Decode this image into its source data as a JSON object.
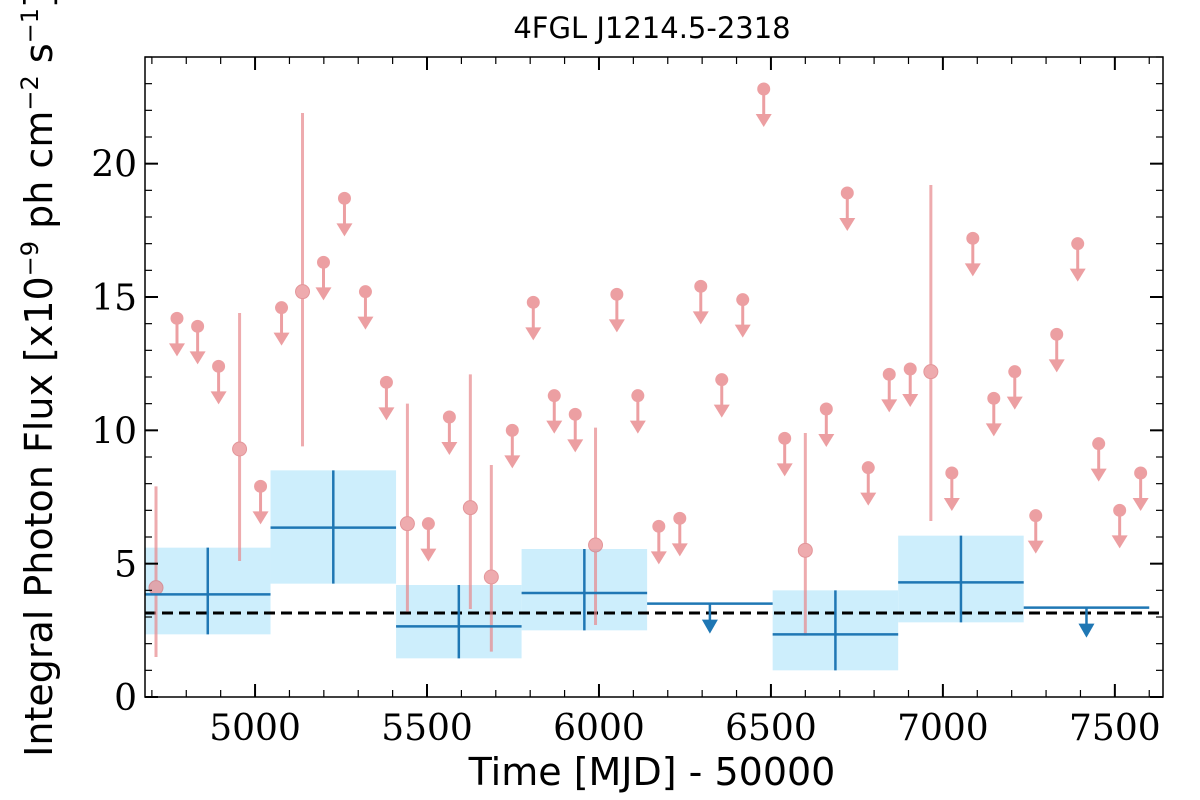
{
  "chart_data": {
    "type": "scatter",
    "title": "4FGL J1214.5-2318",
    "xlabel": "Time [MJD] - 50000",
    "ylabel_text": "Integral Photon Flux [x10",
    "ylabel_exp1": "−9",
    "ylabel_mid": " ph cm",
    "ylabel_exp2": "−2",
    "ylabel_mid2": " s",
    "ylabel_exp3": "−1",
    "ylabel_end": "]",
    "xlim": [
      4680,
      7640
    ],
    "ylim": [
      0,
      24
    ],
    "x_ticks": [
      5000,
      5500,
      6000,
      6500,
      7000,
      7500
    ],
    "y_ticks": [
      0,
      5,
      10,
      15,
      20
    ],
    "x_tick_labels": [
      "5000",
      "5500",
      "6000",
      "6500",
      "7000",
      "7500"
    ],
    "y_tick_labels": [
      "0",
      "5",
      "10",
      "15",
      "20"
    ],
    "baseline": 3.15,
    "colors": {
      "short_bins": "#e8888c",
      "long_bins": "#1f77b4",
      "long_band": "#cdeefc",
      "baseline": "#000000"
    },
    "short_bin_detections": [
      {
        "x": 4712,
        "y": 4.1,
        "lo": 1.5,
        "hi": 7.9
      },
      {
        "x": 4955,
        "y": 9.3,
        "lo": 5.1,
        "hi": 14.4
      },
      {
        "x": 5138,
        "y": 15.2,
        "lo": 9.4,
        "hi": 21.9
      },
      {
        "x": 5443,
        "y": 6.5,
        "lo": 3.2,
        "hi": 11.0
      },
      {
        "x": 5626,
        "y": 7.1,
        "lo": 3.3,
        "hi": 12.1
      },
      {
        "x": 5687,
        "y": 4.5,
        "lo": 1.7,
        "hi": 8.7
      },
      {
        "x": 5990,
        "y": 5.7,
        "lo": 2.7,
        "hi": 10.1
      },
      {
        "x": 6600,
        "y": 5.5,
        "lo": 2.3,
        "hi": 9.9
      },
      {
        "x": 6965,
        "y": 12.2,
        "lo": 6.6,
        "hi": 19.2
      }
    ],
    "short_bin_upper_limits": [
      {
        "x": 4773,
        "y": 14.2
      },
      {
        "x": 4833,
        "y": 13.9
      },
      {
        "x": 4894,
        "y": 12.4
      },
      {
        "x": 5016,
        "y": 7.9
      },
      {
        "x": 5077,
        "y": 14.6
      },
      {
        "x": 5199,
        "y": 16.3
      },
      {
        "x": 5260,
        "y": 18.7
      },
      {
        "x": 5321,
        "y": 15.2
      },
      {
        "x": 5382,
        "y": 11.8
      },
      {
        "x": 5504,
        "y": 6.5
      },
      {
        "x": 5565,
        "y": 10.5
      },
      {
        "x": 5748,
        "y": 10.0
      },
      {
        "x": 5809,
        "y": 14.8
      },
      {
        "x": 5870,
        "y": 11.3
      },
      {
        "x": 5931,
        "y": 10.6
      },
      {
        "x": 6052,
        "y": 15.1
      },
      {
        "x": 6113,
        "y": 11.3
      },
      {
        "x": 6174,
        "y": 6.4
      },
      {
        "x": 6235,
        "y": 6.7
      },
      {
        "x": 6296,
        "y": 15.4
      },
      {
        "x": 6357,
        "y": 11.9
      },
      {
        "x": 6418,
        "y": 14.9
      },
      {
        "x": 6479,
        "y": 22.8
      },
      {
        "x": 6540,
        "y": 9.7
      },
      {
        "x": 6661,
        "y": 10.8
      },
      {
        "x": 6722,
        "y": 18.9
      },
      {
        "x": 6783,
        "y": 8.6
      },
      {
        "x": 6844,
        "y": 12.1
      },
      {
        "x": 6905,
        "y": 12.3
      },
      {
        "x": 7026,
        "y": 8.4
      },
      {
        "x": 7087,
        "y": 17.2
      },
      {
        "x": 7148,
        "y": 11.2
      },
      {
        "x": 7209,
        "y": 12.2
      },
      {
        "x": 7270,
        "y": 6.8
      },
      {
        "x": 7331,
        "y": 13.6
      },
      {
        "x": 7392,
        "y": 17.0
      },
      {
        "x": 7453,
        "y": 9.5
      },
      {
        "x": 7514,
        "y": 7.0
      },
      {
        "x": 7575,
        "y": 8.4
      }
    ],
    "long_bin_detections": [
      {
        "x0": 4680,
        "x1": 5045,
        "y": 3.85,
        "lo": 2.35,
        "hi": 5.6
      },
      {
        "x0": 5045,
        "x1": 5410,
        "y": 6.35,
        "lo": 4.25,
        "hi": 8.5
      },
      {
        "x0": 5410,
        "x1": 5775,
        "y": 2.65,
        "lo": 1.45,
        "hi": 4.2
      },
      {
        "x0": 5775,
        "x1": 6140,
        "y": 3.9,
        "lo": 2.5,
        "hi": 5.55
      },
      {
        "x0": 6505,
        "x1": 6870,
        "y": 2.35,
        "lo": 1.0,
        "hi": 4.0
      },
      {
        "x0": 6870,
        "x1": 7235,
        "y": 4.3,
        "lo": 2.8,
        "hi": 6.05
      }
    ],
    "long_bin_upper_limits": [
      {
        "x0": 6140,
        "x1": 6505,
        "y": 3.5
      },
      {
        "x0": 7235,
        "x1": 7600,
        "y": 3.35
      }
    ]
  }
}
